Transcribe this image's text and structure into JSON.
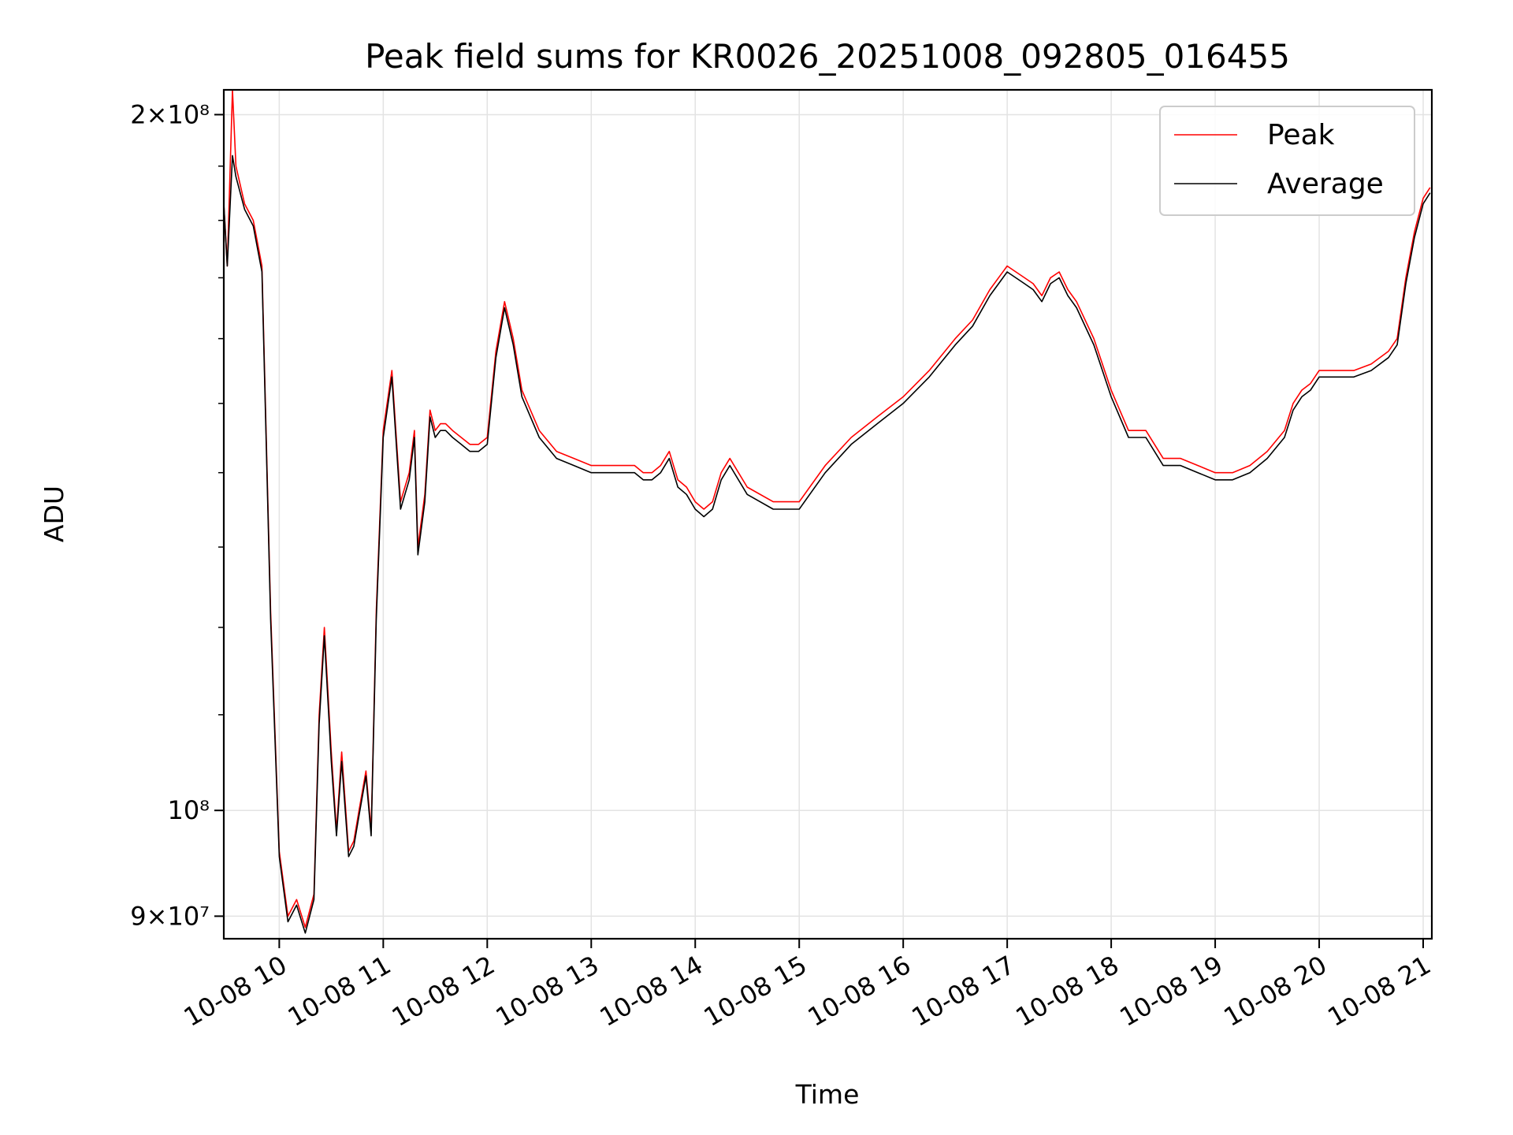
{
  "chart_data": {
    "type": "line",
    "title": "Peak field sums for KR0026_20251008_092805_016455",
    "xlabel": "Time",
    "ylabel": "ADU",
    "yscale": "log",
    "xlim": [
      "2025-10-08 09:28",
      "2025-10-08 21:05"
    ],
    "ylim": [
      88000000,
      205000000
    ],
    "x_ticks": [
      "10-08 10",
      "10-08 11",
      "10-08 12",
      "10-08 13",
      "10-08 14",
      "10-08 15",
      "10-08 16",
      "10-08 17",
      "10-08 18",
      "10-08 19",
      "10-08 20",
      "10-08 21"
    ],
    "y_ticks": [
      {
        "value": 200000000,
        "label": "2×10⁸"
      },
      {
        "value": 100000000,
        "label": "10⁸"
      },
      {
        "value": 90000000,
        "label": "9×10⁷"
      }
    ],
    "grid": true,
    "legend_position": "top-right",
    "x": [
      "09:28",
      "09:30",
      "09:33",
      "09:35",
      "09:40",
      "09:45",
      "09:50",
      "09:55",
      "10:00",
      "10:05",
      "10:10",
      "10:15",
      "10:20",
      "10:23",
      "10:26",
      "10:30",
      "10:33",
      "10:36",
      "10:40",
      "10:43",
      "10:46",
      "10:50",
      "10:53",
      "10:56",
      "11:00",
      "11:05",
      "11:10",
      "11:15",
      "11:18",
      "11:20",
      "11:24",
      "11:27",
      "11:30",
      "11:33",
      "11:36",
      "11:40",
      "11:45",
      "11:50",
      "11:55",
      "12:00",
      "12:05",
      "12:10",
      "12:15",
      "12:20",
      "12:30",
      "12:40",
      "12:50",
      "13:00",
      "13:10",
      "13:20",
      "13:25",
      "13:30",
      "13:35",
      "13:40",
      "13:45",
      "13:50",
      "13:55",
      "14:00",
      "14:05",
      "14:10",
      "14:15",
      "14:20",
      "14:30",
      "14:45",
      "15:00",
      "15:15",
      "15:30",
      "15:45",
      "16:00",
      "16:15",
      "16:30",
      "16:40",
      "16:50",
      "17:00",
      "17:10",
      "17:15",
      "17:20",
      "17:25",
      "17:30",
      "17:35",
      "17:40",
      "17:50",
      "18:00",
      "18:10",
      "18:20",
      "18:30",
      "18:40",
      "18:50",
      "19:00",
      "19:10",
      "19:20",
      "19:30",
      "19:40",
      "19:45",
      "19:50",
      "19:55",
      "20:00",
      "20:10",
      "20:20",
      "20:30",
      "20:40",
      "20:45",
      "20:50",
      "20:55",
      "21:00",
      "21:04"
    ],
    "series": [
      {
        "name": "Peak",
        "color": "#ff0000",
        "values": [
          183000000,
          172000000,
          205000000,
          190000000,
          183000000,
          180000000,
          172000000,
          122000000,
          96000000,
          90000000,
          91500000,
          89000000,
          92000000,
          110000000,
          120000000,
          106000000,
          98000000,
          106000000,
          96000000,
          97000000,
          100000000,
          104000000,
          98000000,
          122000000,
          146000000,
          155000000,
          136000000,
          140000000,
          146000000,
          130000000,
          137000000,
          149000000,
          146000000,
          147000000,
          147000000,
          146000000,
          145000000,
          144000000,
          144000000,
          145000000,
          158000000,
          166000000,
          160000000,
          152000000,
          146000000,
          143000000,
          142000000,
          141000000,
          141000000,
          141000000,
          141000000,
          140000000,
          140000000,
          141000000,
          143000000,
          139000000,
          138000000,
          136000000,
          135000000,
          136000000,
          140000000,
          142000000,
          138000000,
          136000000,
          136000000,
          141000000,
          145000000,
          148000000,
          151000000,
          155000000,
          160000000,
          163000000,
          168000000,
          172000000,
          170000000,
          169000000,
          167000000,
          170000000,
          171000000,
          168000000,
          166000000,
          160000000,
          152000000,
          146000000,
          146000000,
          142000000,
          142000000,
          141000000,
          140000000,
          140000000,
          141000000,
          143000000,
          146000000,
          150000000,
          152000000,
          153000000,
          155000000,
          155000000,
          155000000,
          156000000,
          158000000,
          160000000,
          170000000,
          178000000,
          184000000,
          186000000
        ]
      },
      {
        "name": "Average",
        "color": "#000000",
        "values": [
          183000000,
          172000000,
          192000000,
          188000000,
          182000000,
          179000000,
          171000000,
          121000000,
          95500000,
          89500000,
          91000000,
          88500000,
          91500000,
          109000000,
          119000000,
          105000000,
          97500000,
          105000000,
          95500000,
          96500000,
          99500000,
          103500000,
          97500000,
          121000000,
          145000000,
          154000000,
          135000000,
          139000000,
          145000000,
          129000000,
          136000000,
          148000000,
          145000000,
          146000000,
          146000000,
          145000000,
          144000000,
          143000000,
          143000000,
          144000000,
          157000000,
          165000000,
          159000000,
          151000000,
          145000000,
          142000000,
          141000000,
          140000000,
          140000000,
          140000000,
          140000000,
          139000000,
          139000000,
          140000000,
          142000000,
          138000000,
          137000000,
          135000000,
          134000000,
          135000000,
          139000000,
          141000000,
          137000000,
          135000000,
          135000000,
          140000000,
          144000000,
          147000000,
          150000000,
          154000000,
          159000000,
          162000000,
          167000000,
          171000000,
          169000000,
          168000000,
          166000000,
          169000000,
          170000000,
          167000000,
          165000000,
          159000000,
          151000000,
          145000000,
          145000000,
          141000000,
          141000000,
          140000000,
          139000000,
          139000000,
          140000000,
          142000000,
          145000000,
          149000000,
          151000000,
          152000000,
          154000000,
          154000000,
          154000000,
          155000000,
          157000000,
          159000000,
          169000000,
          177000000,
          183000000,
          185000000
        ]
      }
    ]
  }
}
